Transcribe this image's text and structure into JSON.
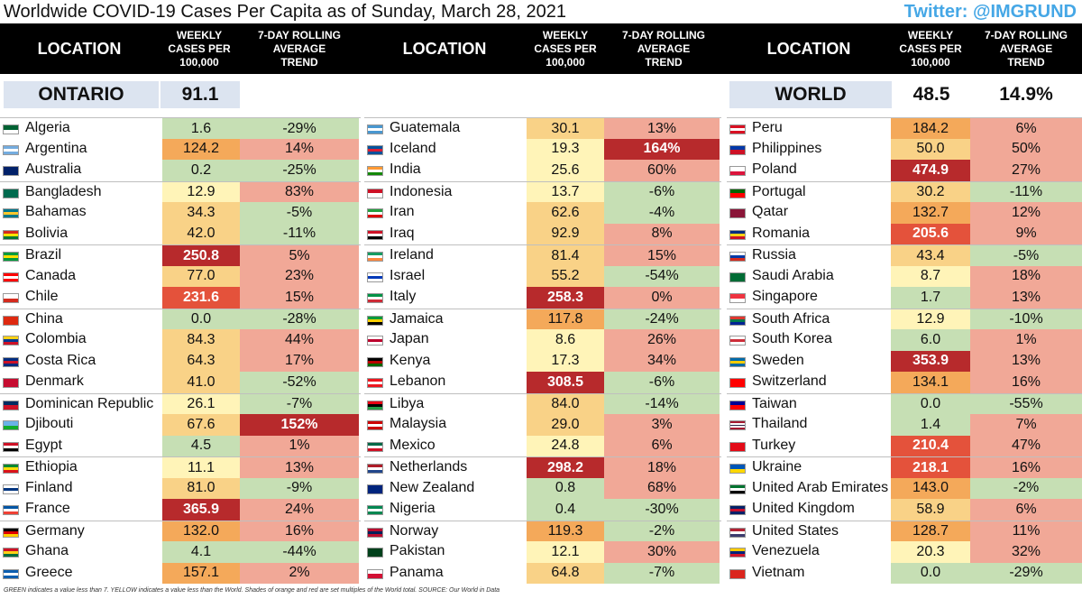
{
  "title": "Worldwide COVID-19 Cases Per Capita as of Sunday, March 28, 2021",
  "twitter": "Twitter: @IMGRUND",
  "headers": {
    "location": "LOCATION",
    "weekly": "WEEKLY CASES PER 100,000",
    "trend": "7-DAY ROLLING AVERAGE TREND"
  },
  "summary": {
    "ontario_label": "ONTARIO",
    "ontario_value": "91.1",
    "world_label": "WORLD",
    "world_value": "48.5",
    "world_trend": "14.9%"
  },
  "colors": {
    "green": "#c6dfb4",
    "yellow": "#fff4b8",
    "light_orange": "#f9d287",
    "orange": "#f4a95a",
    "red_orange": "#e4523b",
    "dark_red": "#b72a2c",
    "trend_up": "#f1a897",
    "trend_down": "#c6dfb4",
    "trend_strong": "#b72a2c"
  },
  "columns": [
    [
      {
        "country": "Algeria",
        "weekly": "1.6",
        "trend": "-29%",
        "wc": "green",
        "tc": "down",
        "flag": [
          "#006233",
          "#ffffff"
        ]
      },
      {
        "country": "Argentina",
        "weekly": "124.2",
        "trend": "14%",
        "wc": "orange",
        "tc": "up",
        "flag": [
          "#74acdf",
          "#ffffff",
          "#74acdf"
        ]
      },
      {
        "country": "Australia",
        "weekly": "0.2",
        "trend": "-25%",
        "wc": "green",
        "tc": "down",
        "flag": [
          "#012169",
          "#012169"
        ]
      },
      {
        "country": "Bangladesh",
        "weekly": "12.9",
        "trend": "83%",
        "wc": "yellow",
        "tc": "up",
        "flag": [
          "#006a4e",
          "#006a4e"
        ]
      },
      {
        "country": "Bahamas",
        "weekly": "34.3",
        "trend": "-5%",
        "wc": "light_orange",
        "tc": "down",
        "flag": [
          "#00778b",
          "#ffc72c",
          "#00778b"
        ]
      },
      {
        "country": "Bolivia",
        "weekly": "42.0",
        "trend": "-11%",
        "wc": "light_orange",
        "tc": "down",
        "flag": [
          "#d52b1e",
          "#f9e300",
          "#007934"
        ]
      },
      {
        "country": "Brazil",
        "weekly": "250.8",
        "trend": "5%",
        "wc": "dark_red",
        "tc": "up",
        "flag": [
          "#009c3b",
          "#ffdf00",
          "#009c3b"
        ]
      },
      {
        "country": "Canada",
        "weekly": "77.0",
        "trend": "23%",
        "wc": "light_orange",
        "tc": "up",
        "flag": [
          "#ff0000",
          "#ffffff",
          "#ff0000"
        ]
      },
      {
        "country": "Chile",
        "weekly": "231.6",
        "trend": "15%",
        "wc": "red_orange",
        "tc": "up",
        "flag": [
          "#ffffff",
          "#d52b1e"
        ]
      },
      {
        "country": "China",
        "weekly": "0.0",
        "trend": "-28%",
        "wc": "green",
        "tc": "down",
        "flag": [
          "#de2910",
          "#de2910"
        ]
      },
      {
        "country": "Colombia",
        "weekly": "84.3",
        "trend": "44%",
        "wc": "light_orange",
        "tc": "up",
        "flag": [
          "#fcd116",
          "#003893",
          "#ce1126"
        ]
      },
      {
        "country": "Costa Rica",
        "weekly": "64.3",
        "trend": "17%",
        "wc": "light_orange",
        "tc": "up",
        "flag": [
          "#002b7f",
          "#ce1126",
          "#002b7f"
        ]
      },
      {
        "country": "Denmark",
        "weekly": "41.0",
        "trend": "-52%",
        "wc": "light_orange",
        "tc": "down",
        "flag": [
          "#c60c30",
          "#c60c30"
        ]
      },
      {
        "country": "Dominican Republic",
        "weekly": "26.1",
        "trend": "-7%",
        "wc": "yellow",
        "tc": "down",
        "flag": [
          "#002d62",
          "#ce1126"
        ]
      },
      {
        "country": "Djibouti",
        "weekly": "67.6",
        "trend": "152%",
        "wc": "light_orange",
        "tc": "strong",
        "flag": [
          "#6ab2e7",
          "#12ad2b"
        ]
      },
      {
        "country": "Egypt",
        "weekly": "4.5",
        "trend": "1%",
        "wc": "green",
        "tc": "up",
        "flag": [
          "#ce1126",
          "#ffffff",
          "#000000"
        ]
      },
      {
        "country": "Ethiopia",
        "weekly": "11.1",
        "trend": "13%",
        "wc": "yellow",
        "tc": "up",
        "flag": [
          "#078930",
          "#fcdd09",
          "#da121a"
        ]
      },
      {
        "country": "Finland",
        "weekly": "81.0",
        "trend": "-9%",
        "wc": "light_orange",
        "tc": "down",
        "flag": [
          "#ffffff",
          "#003580",
          "#ffffff"
        ]
      },
      {
        "country": "France",
        "weekly": "365.9",
        "trend": "24%",
        "wc": "dark_red",
        "tc": "up",
        "flag": [
          "#0055a4",
          "#ffffff",
          "#ef4135"
        ]
      },
      {
        "country": "Germany",
        "weekly": "132.0",
        "trend": "16%",
        "wc": "orange",
        "tc": "up",
        "flag": [
          "#000000",
          "#dd0000",
          "#ffce00"
        ]
      },
      {
        "country": "Ghana",
        "weekly": "4.1",
        "trend": "-44%",
        "wc": "green",
        "tc": "down",
        "flag": [
          "#ce1126",
          "#fcd116",
          "#006b3f"
        ]
      },
      {
        "country": "Greece",
        "weekly": "157.1",
        "trend": "2%",
        "wc": "orange",
        "tc": "up",
        "flag": [
          "#0d5eaf",
          "#ffffff",
          "#0d5eaf"
        ]
      }
    ],
    [
      {
        "country": "Guatemala",
        "weekly": "30.1",
        "trend": "13%",
        "wc": "light_orange",
        "tc": "up",
        "flag": [
          "#4997d0",
          "#ffffff",
          "#4997d0"
        ]
      },
      {
        "country": "Iceland",
        "weekly": "19.3",
        "trend": "164%",
        "wc": "yellow",
        "tc": "strong",
        "flag": [
          "#02529c",
          "#dc1e35",
          "#02529c"
        ]
      },
      {
        "country": "India",
        "weekly": "25.6",
        "trend": "60%",
        "wc": "yellow",
        "tc": "up",
        "flag": [
          "#ff9933",
          "#ffffff",
          "#138808"
        ]
      },
      {
        "country": "Indonesia",
        "weekly": "13.7",
        "trend": "-6%",
        "wc": "yellow",
        "tc": "down",
        "flag": [
          "#ce1126",
          "#ffffff"
        ]
      },
      {
        "country": "Iran",
        "weekly": "62.6",
        "trend": "-4%",
        "wc": "light_orange",
        "tc": "down",
        "flag": [
          "#239f40",
          "#ffffff",
          "#da0000"
        ]
      },
      {
        "country": "Iraq",
        "weekly": "92.9",
        "trend": "8%",
        "wc": "light_orange",
        "tc": "up",
        "flag": [
          "#ce1126",
          "#ffffff",
          "#000000"
        ]
      },
      {
        "country": "Ireland",
        "weekly": "81.4",
        "trend": "15%",
        "wc": "light_orange",
        "tc": "up",
        "flag": [
          "#169b62",
          "#ffffff",
          "#ff883e"
        ]
      },
      {
        "country": "Israel",
        "weekly": "55.2",
        "trend": "-54%",
        "wc": "light_orange",
        "tc": "down",
        "flag": [
          "#ffffff",
          "#0038b8",
          "#ffffff"
        ]
      },
      {
        "country": "Italy",
        "weekly": "258.3",
        "trend": "0%",
        "wc": "dark_red",
        "tc": "up",
        "flag": [
          "#009246",
          "#ffffff",
          "#ce2b37"
        ]
      },
      {
        "country": "Jamaica",
        "weekly": "117.8",
        "trend": "-24%",
        "wc": "orange",
        "tc": "down",
        "flag": [
          "#009b3a",
          "#fed100",
          "#000000"
        ]
      },
      {
        "country": "Japan",
        "weekly": "8.6",
        "trend": "26%",
        "wc": "yellow",
        "tc": "up",
        "flag": [
          "#ffffff",
          "#bc002d",
          "#ffffff"
        ]
      },
      {
        "country": "Kenya",
        "weekly": "17.3",
        "trend": "34%",
        "wc": "yellow",
        "tc": "up",
        "flag": [
          "#000000",
          "#bb0000",
          "#006600"
        ]
      },
      {
        "country": "Lebanon",
        "weekly": "308.5",
        "trend": "-6%",
        "wc": "dark_red",
        "tc": "down",
        "flag": [
          "#ee161f",
          "#ffffff",
          "#ee161f"
        ]
      },
      {
        "country": "Libya",
        "weekly": "84.0",
        "trend": "-14%",
        "wc": "light_orange",
        "tc": "down",
        "flag": [
          "#e70013",
          "#000000",
          "#239e46"
        ]
      },
      {
        "country": "Malaysia",
        "weekly": "29.0",
        "trend": "3%",
        "wc": "light_orange",
        "tc": "up",
        "flag": [
          "#cc0001",
          "#ffffff",
          "#cc0001"
        ]
      },
      {
        "country": "Mexico",
        "weekly": "24.8",
        "trend": "6%",
        "wc": "yellow",
        "tc": "up",
        "flag": [
          "#006847",
          "#ffffff",
          "#ce1126"
        ]
      },
      {
        "country": "Netherlands",
        "weekly": "298.2",
        "trend": "18%",
        "wc": "dark_red",
        "tc": "up",
        "flag": [
          "#ae1c28",
          "#ffffff",
          "#21468b"
        ]
      },
      {
        "country": "New Zealand",
        "weekly": "0.8",
        "trend": "68%",
        "wc": "green",
        "tc": "up",
        "flag": [
          "#00247d",
          "#00247d"
        ]
      },
      {
        "country": "Nigeria",
        "weekly": "0.4",
        "trend": "-30%",
        "wc": "green",
        "tc": "down",
        "flag": [
          "#008751",
          "#ffffff",
          "#008751"
        ]
      },
      {
        "country": "Norway",
        "weekly": "119.3",
        "trend": "-2%",
        "wc": "orange",
        "tc": "down",
        "flag": [
          "#ba0c2f",
          "#00205b",
          "#ba0c2f"
        ]
      },
      {
        "country": "Pakistan",
        "weekly": "12.1",
        "trend": "30%",
        "wc": "yellow",
        "tc": "up",
        "flag": [
          "#01411c",
          "#01411c"
        ]
      },
      {
        "country": "Panama",
        "weekly": "64.8",
        "trend": "-7%",
        "wc": "light_orange",
        "tc": "down",
        "flag": [
          "#ffffff",
          "#d21034"
        ]
      }
    ],
    [
      {
        "country": "Peru",
        "weekly": "184.2",
        "trend": "6%",
        "wc": "orange",
        "tc": "up",
        "flag": [
          "#d91023",
          "#ffffff",
          "#d91023"
        ]
      },
      {
        "country": "Philippines",
        "weekly": "50.0",
        "trend": "50%",
        "wc": "light_orange",
        "tc": "up",
        "flag": [
          "#0038a8",
          "#ce1126"
        ]
      },
      {
        "country": "Poland",
        "weekly": "474.9",
        "trend": "27%",
        "wc": "dark_red",
        "tc": "up",
        "flag": [
          "#ffffff",
          "#dc143c"
        ]
      },
      {
        "country": "Portugal",
        "weekly": "30.2",
        "trend": "-11%",
        "wc": "light_orange",
        "tc": "down",
        "flag": [
          "#006600",
          "#ff0000"
        ]
      },
      {
        "country": "Qatar",
        "weekly": "132.7",
        "trend": "12%",
        "wc": "orange",
        "tc": "up",
        "flag": [
          "#8a1538",
          "#8a1538"
        ]
      },
      {
        "country": "Romania",
        "weekly": "205.6",
        "trend": "9%",
        "wc": "red_orange",
        "tc": "up",
        "flag": [
          "#002b7f",
          "#fcd116",
          "#ce1126"
        ]
      },
      {
        "country": "Russia",
        "weekly": "43.4",
        "trend": "-5%",
        "wc": "light_orange",
        "tc": "down",
        "flag": [
          "#ffffff",
          "#0039a6",
          "#d52b1e"
        ]
      },
      {
        "country": "Saudi Arabia",
        "weekly": "8.7",
        "trend": "18%",
        "wc": "yellow",
        "tc": "up",
        "flag": [
          "#006c35",
          "#006c35"
        ]
      },
      {
        "country": "Singapore",
        "weekly": "1.7",
        "trend": "13%",
        "wc": "green",
        "tc": "up",
        "flag": [
          "#ef3340",
          "#ffffff"
        ]
      },
      {
        "country": "South Africa",
        "weekly": "12.9",
        "trend": "-10%",
        "wc": "yellow",
        "tc": "down",
        "flag": [
          "#de3831",
          "#007a4d",
          "#002395"
        ]
      },
      {
        "country": "South Korea",
        "weekly": "6.0",
        "trend": "1%",
        "wc": "green",
        "tc": "up",
        "flag": [
          "#ffffff",
          "#cd2e3a",
          "#ffffff"
        ]
      },
      {
        "country": "Sweden",
        "weekly": "353.9",
        "trend": "13%",
        "wc": "dark_red",
        "tc": "up",
        "flag": [
          "#006aa7",
          "#fecc00",
          "#006aa7"
        ]
      },
      {
        "country": "Switzerland",
        "weekly": "134.1",
        "trend": "16%",
        "wc": "orange",
        "tc": "up",
        "flag": [
          "#ff0000",
          "#ff0000"
        ]
      },
      {
        "country": "Taiwan",
        "weekly": "0.0",
        "trend": "-55%",
        "wc": "green",
        "tc": "down",
        "flag": [
          "#000095",
          "#fe0000"
        ]
      },
      {
        "country": "Thailand",
        "weekly": "1.4",
        "trend": "7%",
        "wc": "green",
        "tc": "up",
        "flag": [
          "#a51931",
          "#ffffff",
          "#2d2a4a",
          "#ffffff",
          "#a51931"
        ]
      },
      {
        "country": "Turkey",
        "weekly": "210.4",
        "trend": "47%",
        "wc": "red_orange",
        "tc": "up",
        "flag": [
          "#e30a17",
          "#e30a17"
        ]
      },
      {
        "country": "Ukraine",
        "weekly": "218.1",
        "trend": "16%",
        "wc": "red_orange",
        "tc": "up",
        "flag": [
          "#0057b7",
          "#ffd700"
        ]
      },
      {
        "country": "United Arab Emirates",
        "weekly": "143.0",
        "trend": "-2%",
        "wc": "orange",
        "tc": "down",
        "flag": [
          "#00732f",
          "#ffffff",
          "#000000"
        ]
      },
      {
        "country": "United Kingdom",
        "weekly": "58.9",
        "trend": "6%",
        "wc": "light_orange",
        "tc": "up",
        "flag": [
          "#012169",
          "#c8102e",
          "#012169"
        ]
      },
      {
        "country": "United States",
        "weekly": "128.7",
        "trend": "11%",
        "wc": "orange",
        "tc": "up",
        "flag": [
          "#b22234",
          "#ffffff",
          "#3c3b6e"
        ]
      },
      {
        "country": "Venezuela",
        "weekly": "20.3",
        "trend": "32%",
        "wc": "yellow",
        "tc": "up",
        "flag": [
          "#ffcc00",
          "#00247d",
          "#cf142b"
        ]
      },
      {
        "country": "Vietnam",
        "weekly": "0.0",
        "trend": "-29%",
        "wc": "green",
        "tc": "down",
        "flag": [
          "#da251d",
          "#da251d"
        ]
      }
    ]
  ],
  "footer": "GREEN indicates a value less than 7. YELLOW indicates a value less than the World. Shades of orange and red are set multiples of the World total. SOURCE: Our World in Data"
}
